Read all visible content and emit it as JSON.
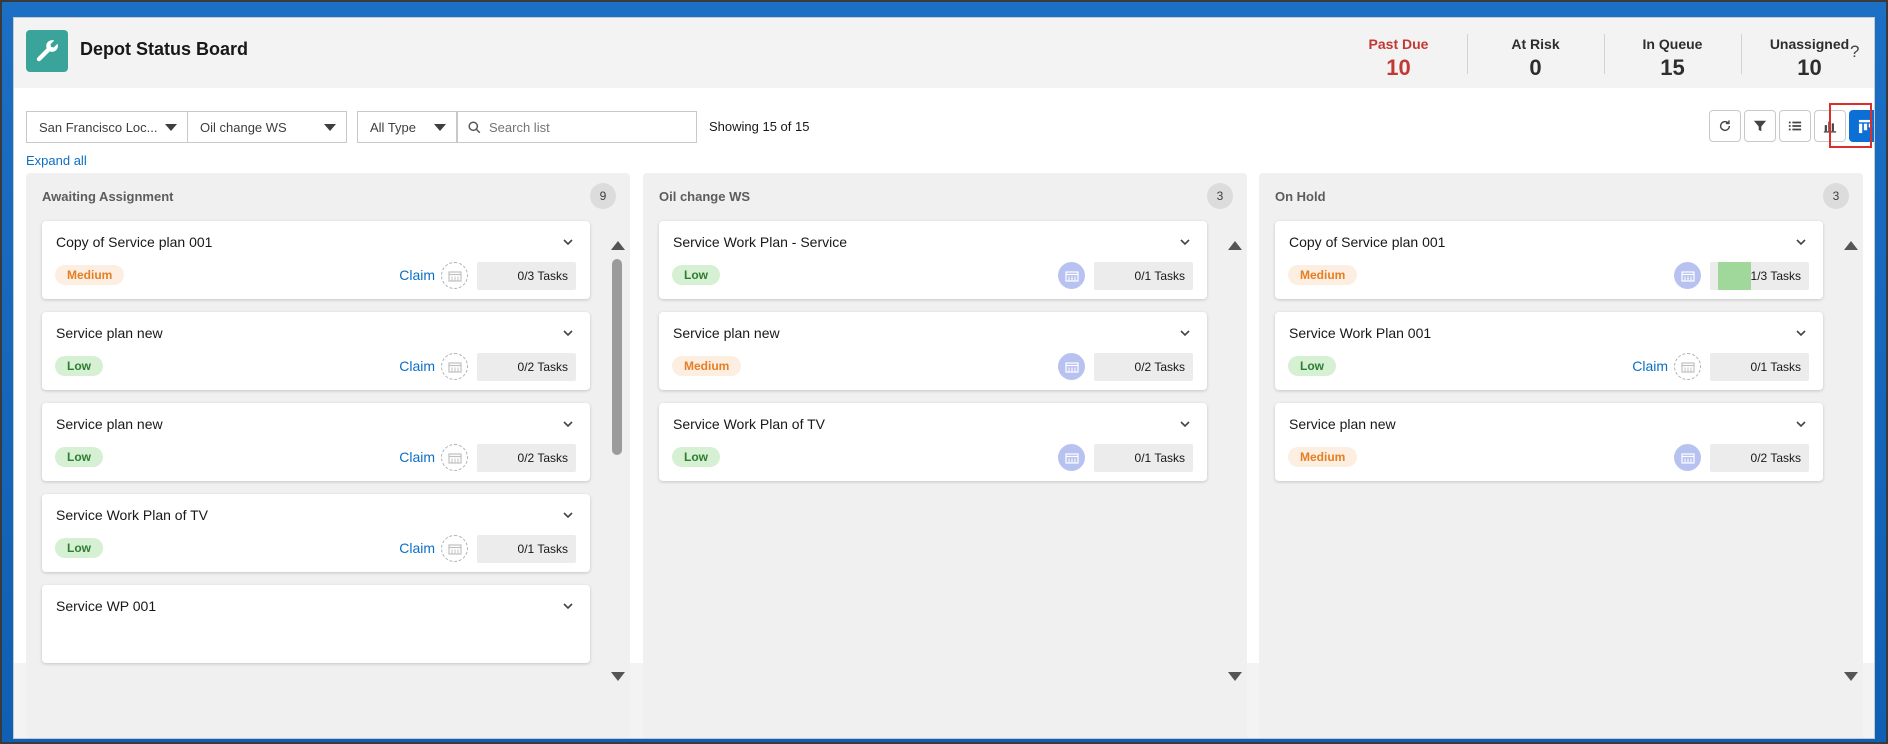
{
  "header": {
    "title": "Depot Status Board",
    "help": "?",
    "stats": [
      {
        "label": "Past Due",
        "value": "10"
      },
      {
        "label": "At Risk",
        "value": "0"
      },
      {
        "label": "In Queue",
        "value": "15"
      },
      {
        "label": "Unassigned",
        "value": "10"
      }
    ]
  },
  "filters": {
    "location": "San Francisco Loc...",
    "workspace": "Oil change WS",
    "type": "All Type",
    "search_placeholder": "Search list",
    "showing": "Showing 15 of 15"
  },
  "expand_all": "Expand all",
  "colors": {
    "accent": "#0b6fd6",
    "app_icon": "#3ba49a",
    "past_due": "#c23934",
    "low": "#2e7d32",
    "medium": "#e67e22"
  },
  "columns": [
    {
      "title": "Awaiting Assignment",
      "count": "9",
      "cards": [
        {
          "title": "Copy of Service plan 001",
          "priority": "Medium",
          "claim": "Claim",
          "tasks": "0/3 Tasks",
          "progress": 0
        },
        {
          "title": "Service plan new",
          "priority": "Low",
          "claim": "Claim",
          "tasks": "0/2 Tasks",
          "progress": 0
        },
        {
          "title": "Service plan new",
          "priority": "Low",
          "claim": "Claim",
          "tasks": "0/2 Tasks",
          "progress": 0
        },
        {
          "title": "Service Work Plan of TV",
          "priority": "Low",
          "claim": "Claim",
          "tasks": "0/1 Tasks",
          "progress": 0
        },
        {
          "title": "Service WP 001"
        }
      ]
    },
    {
      "title": "Oil change WS",
      "count": "3",
      "cards": [
        {
          "title": "Service Work Plan - Service",
          "priority": "Low",
          "tasks": "0/1 Tasks",
          "progress": 0
        },
        {
          "title": "Service plan new",
          "priority": "Medium",
          "tasks": "0/2 Tasks",
          "progress": 0
        },
        {
          "title": "Service Work Plan of TV",
          "priority": "Low",
          "tasks": "0/1 Tasks",
          "progress": 0
        }
      ]
    },
    {
      "title": "On Hold",
      "count": "3",
      "cards": [
        {
          "title": "Copy of Service plan 001",
          "priority": "Medium",
          "tasks": "1/3 Tasks",
          "progress": 0.33
        },
        {
          "title": "Service Work Plan 001",
          "priority": "Low",
          "claim": "Claim",
          "tasks": "0/1 Tasks",
          "progress": 0
        },
        {
          "title": "Service plan new",
          "priority": "Medium",
          "tasks": "0/2 Tasks",
          "progress": 0
        }
      ]
    }
  ]
}
